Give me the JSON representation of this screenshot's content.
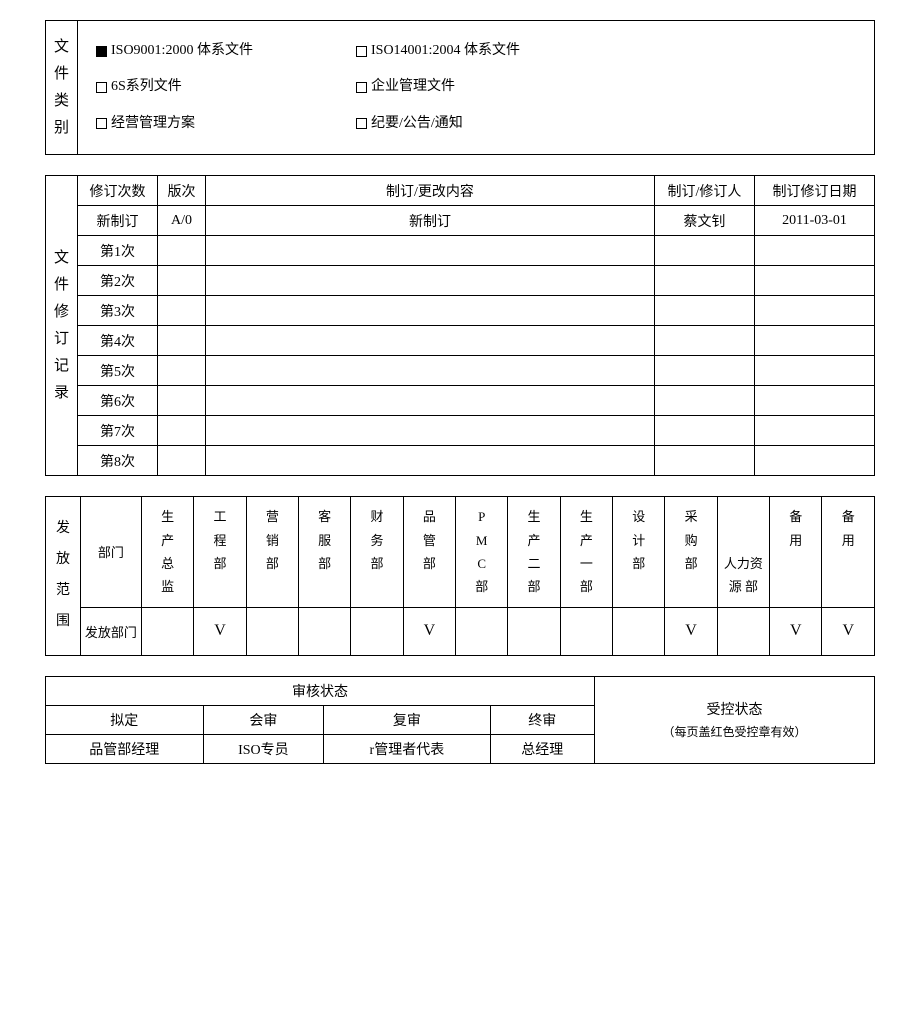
{
  "category": {
    "label": "文件类别",
    "items": [
      {
        "checked": true,
        "text": "ISO9001:2000 体系文件"
      },
      {
        "checked": false,
        "text": "ISO14001:2004 体系文件"
      },
      {
        "checked": false,
        "text": "6S系列文件"
      },
      {
        "checked": false,
        "text": "企业管理文件"
      },
      {
        "checked": false,
        "text": "经营管理方案"
      },
      {
        "checked": false,
        "text": "纪要/公告/通知"
      }
    ]
  },
  "revision": {
    "label": "文件修订记录",
    "headers": {
      "count": "修订次数",
      "version": "版次",
      "content": "制订/更改内容",
      "person": "制订/修订人",
      "date": "制订修订日期"
    },
    "rows": [
      {
        "count": "新制订",
        "version": "A/0",
        "content": "新制订",
        "person": "蔡文钊",
        "date": "2011-03-01"
      },
      {
        "count": "第1次",
        "version": "",
        "content": "",
        "person": "",
        "date": ""
      },
      {
        "count": "第2次",
        "version": "",
        "content": "",
        "person": "",
        "date": ""
      },
      {
        "count": "第3次",
        "version": "",
        "content": "",
        "person": "",
        "date": ""
      },
      {
        "count": "第4次",
        "version": "",
        "content": "",
        "person": "",
        "date": ""
      },
      {
        "count": "第5次",
        "version": "",
        "content": "",
        "person": "",
        "date": ""
      },
      {
        "count": "第6次",
        "version": "",
        "content": "",
        "person": "",
        "date": ""
      },
      {
        "count": "第7次",
        "version": "",
        "content": "",
        "person": "",
        "date": ""
      },
      {
        "count": "第8次",
        "version": "",
        "content": "",
        "person": "",
        "date": ""
      }
    ]
  },
  "distribution": {
    "label": "发放范围",
    "row1_label": "部门",
    "row2_label": "发放部门",
    "departments": [
      "生产总监",
      "工程部",
      "营销部",
      "客服部",
      "财务部",
      "品管部",
      "PMC部",
      "生产二部",
      "生产一部",
      "设计部",
      "采购部",
      "人力资源 部",
      "备用",
      "备用"
    ],
    "marks": [
      "",
      "V",
      "",
      "",
      "",
      "V",
      "",
      "",
      "",
      "",
      "V",
      "",
      "V",
      "V"
    ]
  },
  "status": {
    "audit_header": "审核状态",
    "cols": [
      {
        "h": "拟定",
        "v": "品管部经理"
      },
      {
        "h": "会审",
        "v": "ISO专员"
      },
      {
        "h": "复审",
        "v": "r管理者代表"
      },
      {
        "h": "终审",
        "v": "总经理"
      }
    ],
    "control_title": "受控状态",
    "control_sub": "（每页盖红色受控章有效）"
  }
}
